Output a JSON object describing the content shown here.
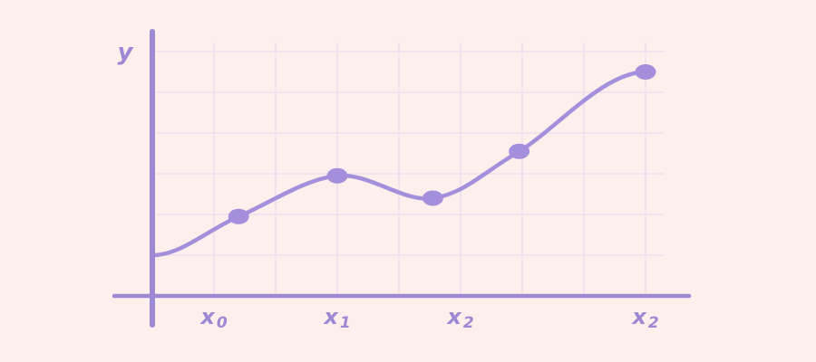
{
  "colors": {
    "background": "#fdefec",
    "accent": "#a48fdc",
    "axis": "#9d88d4",
    "grid": "#ede0ee"
  },
  "chart_data": {
    "type": "line",
    "title": "",
    "xlabel": "",
    "ylabel": "y",
    "x_ticks": [
      {
        "base": "x",
        "sub": "0",
        "x": 1
      },
      {
        "base": "x",
        "sub": "1",
        "x": 3
      },
      {
        "base": "x",
        "sub": "2",
        "x": 5
      },
      {
        "base": "x",
        "sub": "2",
        "x": 8
      }
    ],
    "xlim": [
      0,
      8.7
    ],
    "ylim": [
      0,
      6.0
    ],
    "grid": true,
    "series": [
      {
        "points": [
          {
            "x": 0,
            "y": 1.0
          },
          {
            "x": 1.4,
            "y": 1.95,
            "marker": true
          },
          {
            "x": 3.0,
            "y": 2.95,
            "marker": true
          },
          {
            "x": 4.55,
            "y": 2.4,
            "marker": true
          },
          {
            "x": 5.95,
            "y": 3.55,
            "marker": true
          },
          {
            "x": 8.0,
            "y": 5.5,
            "marker": true
          }
        ]
      }
    ]
  }
}
